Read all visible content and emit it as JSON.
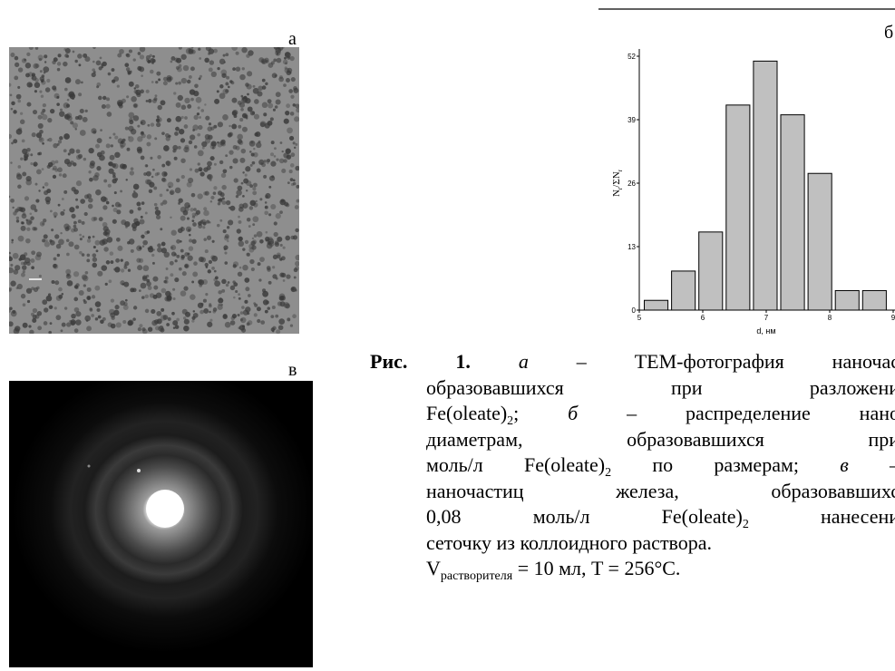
{
  "panels": {
    "a": {
      "label": "а"
    },
    "v": {
      "label": "в"
    }
  },
  "chart_data": {
    "type": "histogram",
    "panel_label": "б",
    "bins": [
      5.05,
      5.48,
      5.91,
      6.34,
      6.77,
      7.2,
      7.63,
      8.06,
      8.49,
      8.92
    ],
    "values": [
      2,
      8,
      16,
      42,
      51,
      40,
      28,
      4,
      4
    ],
    "color": "#c0c0c0",
    "xlabel": "d, нм",
    "ylabel": [
      "N",
      "r",
      "/ΣN",
      "r"
    ],
    "xlim": [
      5,
      9
    ],
    "ylim": [
      0,
      52
    ],
    "xticks": [
      5,
      6,
      7,
      8,
      9
    ],
    "yticks": [
      0,
      13,
      26,
      39,
      52
    ]
  },
  "caption": {
    "lines": [
      [
        {
          "text": "Рис. 1.",
          "style": "bold"
        },
        {
          "text": " "
        },
        {
          "text": "а",
          "style": "italic"
        },
        {
          "text": " – ТЕМ-фотография наночас"
        }
      ],
      [
        {
          "text": "образовавшихся при разложени"
        }
      ],
      [
        {
          "text": "Fe(oleate)"
        },
        {
          "text": "2",
          "style": "sub"
        },
        {
          "text": "; "
        },
        {
          "text": "б",
          "style": "italic"
        },
        {
          "text": " – распределение нано"
        }
      ],
      [
        {
          "text": "диаметрам, образовавшихся при"
        }
      ],
      [
        {
          "text": "моль/л Fe(oleate)"
        },
        {
          "text": "2",
          "style": "sub"
        },
        {
          "text": " по размерам; "
        },
        {
          "text": "в",
          "style": "italic"
        },
        {
          "text": " –"
        }
      ],
      [
        {
          "text": "наночастиц железа, образовавшихс"
        }
      ],
      [
        {
          "text": "0,08 моль/л Fe(oleate)"
        },
        {
          "text": "2",
          "style": "sub"
        },
        {
          "text": " нанесени"
        }
      ],
      [
        {
          "text": "сеточку из коллоидного раствора."
        }
      ],
      [
        {
          "text": "V"
        },
        {
          "text": "растворителя",
          "style": "sub"
        },
        {
          "text": " = 10 мл, T = 256°C."
        }
      ]
    ]
  }
}
